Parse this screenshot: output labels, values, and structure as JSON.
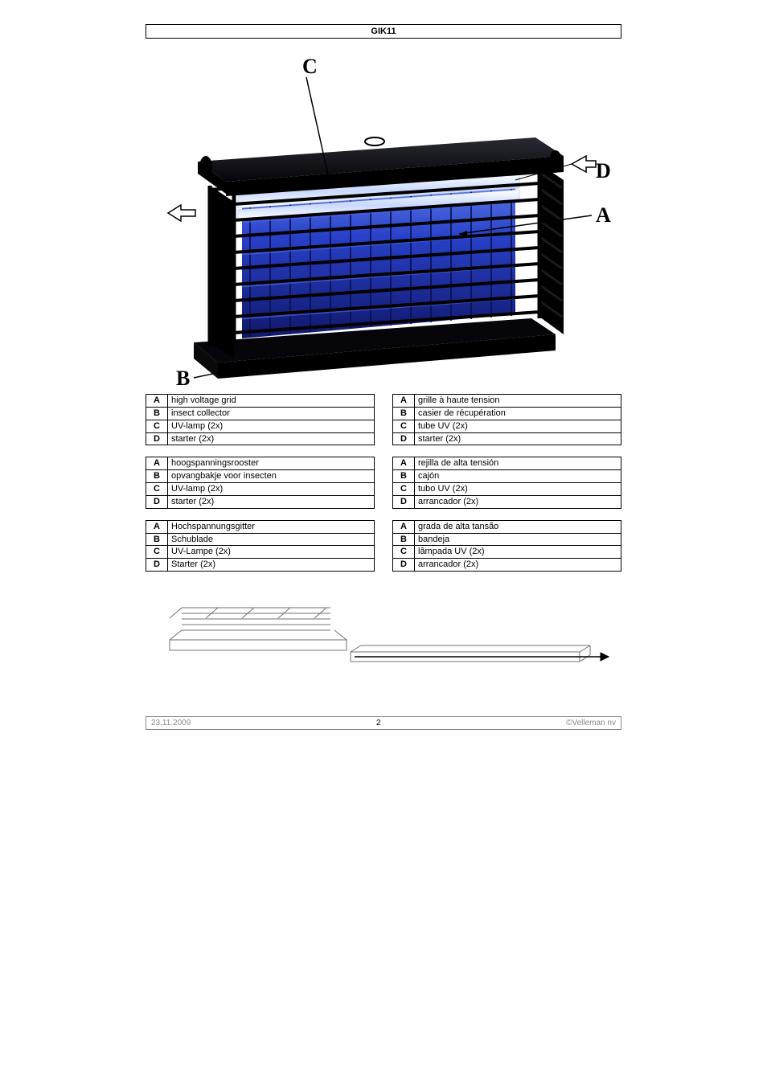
{
  "title": "GIK11",
  "labels": {
    "C": "C",
    "D": "D",
    "A": "A",
    "B": "B"
  },
  "tablesLeft": [
    {
      "rows": [
        {
          "l": "A",
          "t": "high voltage grid"
        },
        {
          "l": "B",
          "t": "insect collector"
        },
        {
          "l": "C",
          "t": "UV-lamp (2x)"
        },
        {
          "l": "D",
          "t": "starter (2x)"
        }
      ]
    },
    {
      "rows": [
        {
          "l": "A",
          "t": "hoogspanningsrooster"
        },
        {
          "l": "B",
          "t": "opvangbakje voor insecten"
        },
        {
          "l": "C",
          "t": "UV-lamp (2x)"
        },
        {
          "l": "D",
          "t": "starter (2x)"
        }
      ]
    },
    {
      "rows": [
        {
          "l": "A",
          "t": "Hochspannungsgitter"
        },
        {
          "l": "B",
          "t": "Schublade"
        },
        {
          "l": "C",
          "t": "UV-Lampe (2x)"
        },
        {
          "l": "D",
          "t": "Starter (2x)"
        }
      ]
    }
  ],
  "tablesRight": [
    {
      "rows": [
        {
          "l": "A",
          "t": "grille à haute tension"
        },
        {
          "l": "B",
          "t": "casier de récupération"
        },
        {
          "l": "C",
          "t": "tube UV (2x)"
        },
        {
          "l": "D",
          "t": "starter (2x)"
        }
      ]
    },
    {
      "rows": [
        {
          "l": "A",
          "t": "rejilla de alta tensión"
        },
        {
          "l": "B",
          "t": "cajón"
        },
        {
          "l": "C",
          "t": "tubo UV (2x)"
        },
        {
          "l": "D",
          "t": "arrancador (2x)"
        }
      ]
    },
    {
      "rows": [
        {
          "l": "A",
          "t": "grada de alta tansão"
        },
        {
          "l": "B",
          "t": "bandeja"
        },
        {
          "l": "C",
          "t": "lâmpada UV (2x)"
        },
        {
          "l": "D",
          "t": "arrancador (2x)"
        }
      ]
    }
  ],
  "footer": {
    "date": "23.11.2009",
    "page": "2",
    "copyright": "©Velleman nv"
  },
  "colors": {
    "device_body": "#0a0a12",
    "grid_blue_dark": "#1a2a8a",
    "grid_blue_mid": "#2840c8",
    "grid_blue_light": "#6a8af0",
    "lamp_white": "#e8eefc",
    "lamp_glow": "#a8c4ff",
    "tray_line": "#808080",
    "border": "#000000"
  }
}
